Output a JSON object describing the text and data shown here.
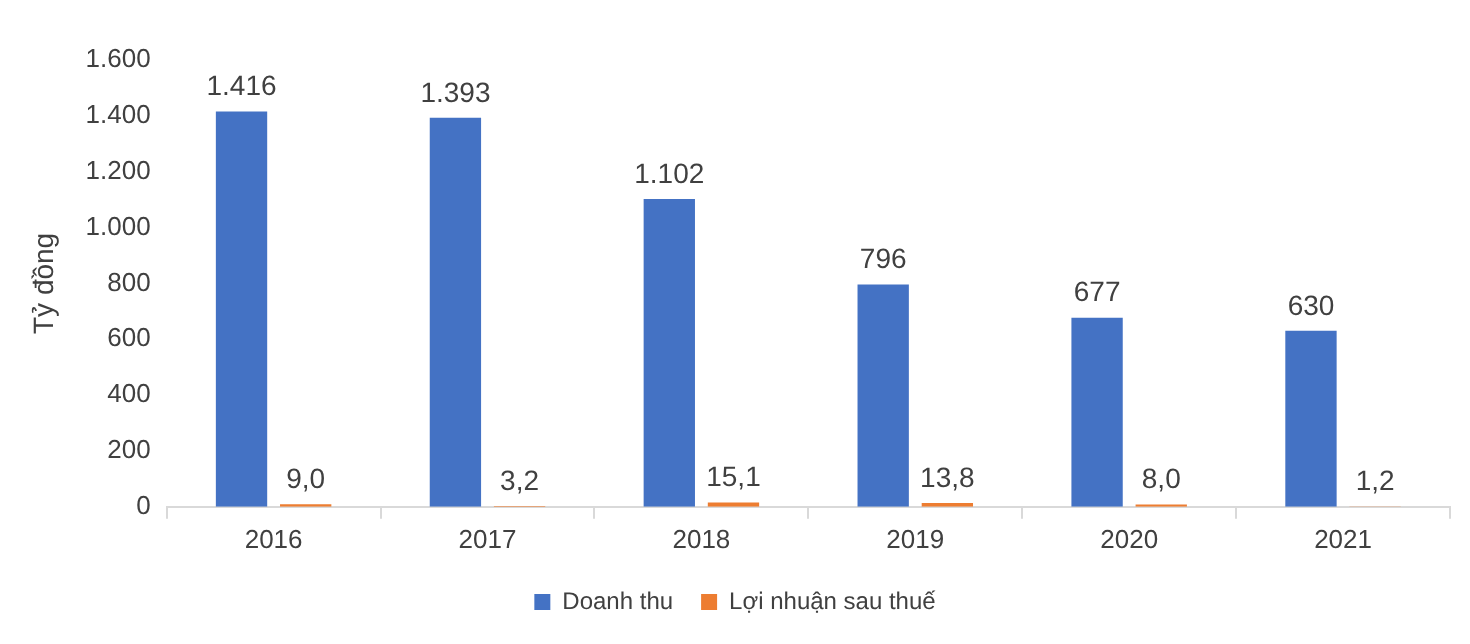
{
  "chart_data": {
    "type": "bar",
    "ylabel": "Tỷ đồng",
    "categories": [
      "2016",
      "2017",
      "2018",
      "2019",
      "2020",
      "2021"
    ],
    "series": [
      {
        "name": "Doanh thu",
        "color": "#4472c4",
        "values": [
          1416,
          1393,
          1102,
          796,
          677,
          630
        ],
        "value_labels": [
          "1.416",
          "1.393",
          "1.102",
          "796",
          "677",
          "630"
        ]
      },
      {
        "name": "Lợi nhuận sau thuế",
        "color": "#ed7d31",
        "values": [
          9.0,
          3.2,
          15.1,
          13.8,
          8.0,
          1.2
        ],
        "value_labels": [
          "9,0",
          "3,2",
          "15,1",
          "13,8",
          "8,0",
          "1,2"
        ]
      }
    ],
    "ylim": [
      0,
      1600
    ],
    "yticks": [
      {
        "value": 0,
        "label": "0"
      },
      {
        "value": 200,
        "label": "200"
      },
      {
        "value": 400,
        "label": "400"
      },
      {
        "value": 600,
        "label": "600"
      },
      {
        "value": 800,
        "label": "800"
      },
      {
        "value": 1000,
        "label": "1.000"
      },
      {
        "value": 1200,
        "label": "1.200"
      },
      {
        "value": 1400,
        "label": "1.400"
      },
      {
        "value": 1600,
        "label": "1.600"
      }
    ],
    "grid": false,
    "legend": "bottom"
  }
}
